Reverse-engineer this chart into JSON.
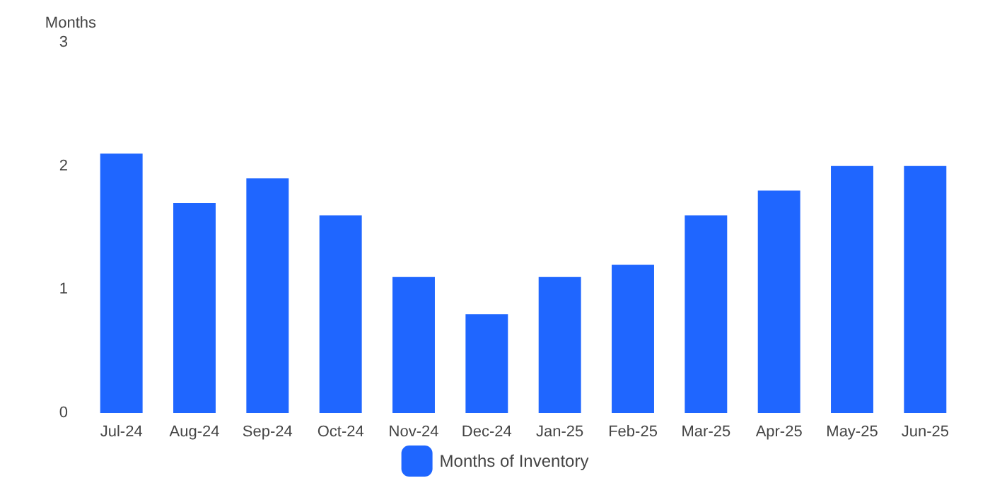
{
  "chart_data": {
    "type": "bar",
    "ylabel": "Months",
    "categories": [
      "Jul-24",
      "Aug-24",
      "Sep-24",
      "Oct-24",
      "Nov-24",
      "Dec-24",
      "Jan-25",
      "Feb-25",
      "Mar-25",
      "Apr-25",
      "May-25",
      "Jun-25"
    ],
    "series": [
      {
        "name": "Months of Inventory",
        "color": "#1f66ff",
        "values": [
          2.1,
          1.7,
          1.9,
          1.6,
          1.1,
          0.8,
          1.1,
          1.2,
          1.6,
          1.8,
          2.0,
          2.0
        ]
      }
    ],
    "ylim": [
      0,
      3
    ],
    "yticks": [
      0,
      1,
      2,
      3
    ],
    "grid": false,
    "legend": "bottom"
  }
}
